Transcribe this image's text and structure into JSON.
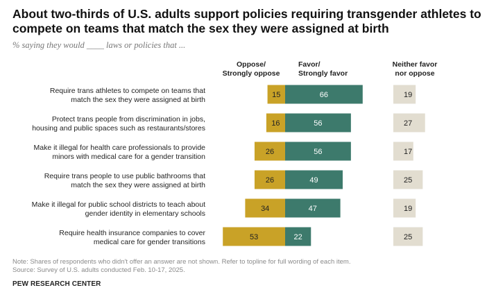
{
  "header": {
    "title": "About two-thirds of U.S. adults support policies requiring transgender athletes to compete on teams that match the sex they were assigned at birth",
    "subtitle": "% saying they would ____ laws or policies that ..."
  },
  "chart_data": {
    "type": "bar",
    "columns": {
      "oppose": [
        "Oppose/",
        "Strongly oppose"
      ],
      "favor": [
        "Favor/",
        "Strongly favor"
      ],
      "neither": [
        "Neither favor",
        "nor oppose"
      ]
    },
    "categories": [
      [
        "Require trans athletes to compete on teams that",
        "match the sex they were assigned at birth"
      ],
      [
        "Protect trans people from discrimination in jobs,",
        "housing and public spaces such as restaurants/stores"
      ],
      [
        "Make it illegal for health care professionals to provide",
        "minors with medical care for a gender transition"
      ],
      [
        "Require trans people to use public bathrooms that",
        "match the sex they were assigned at birth"
      ],
      [
        "Make it illegal for public school districts to teach about",
        "gender identity in elementary schools"
      ],
      [
        "Require health insurance companies to cover",
        "medical care for gender transitions"
      ]
    ],
    "series": [
      {
        "name": "Oppose/Strongly oppose",
        "values": [
          15,
          16,
          26,
          26,
          34,
          53
        ],
        "color": "#c9a227"
      },
      {
        "name": "Favor/Strongly favor",
        "values": [
          66,
          56,
          56,
          49,
          47,
          22
        ],
        "color": "#3d7a6c"
      },
      {
        "name": "Neither favor nor oppose",
        "values": [
          19,
          27,
          17,
          25,
          19,
          25
        ],
        "color": "#e2ddd0"
      }
    ]
  },
  "footer": {
    "note": "Note: Shares of respondents who didn't offer an answer are not shown. Refer to topline for full wording of each item.",
    "source": "Source: Survey of U.S. adults conducted Feb. 10-17, 2025.",
    "brand": "PEW RESEARCH CENTER"
  }
}
